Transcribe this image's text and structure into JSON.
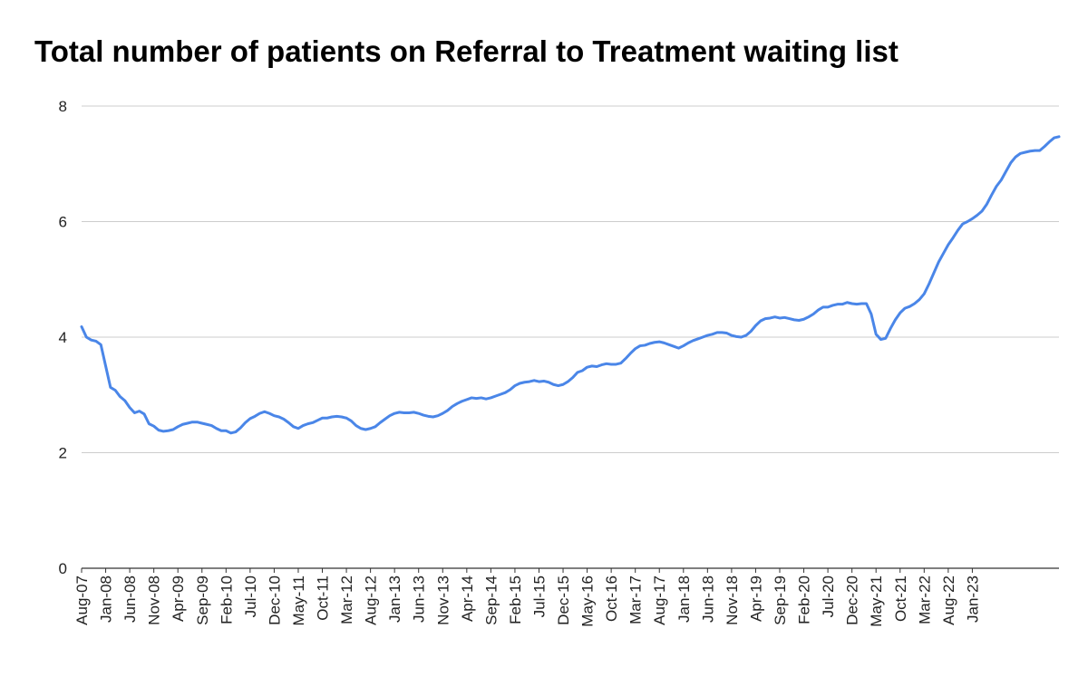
{
  "chart_data": {
    "type": "line",
    "title": "Total number of patients on Referral to Treatment waiting list",
    "xlabel": "",
    "ylabel": "",
    "ylim": [
      0,
      8
    ],
    "yticks": [
      0,
      2,
      4,
      6,
      8
    ],
    "grid": true,
    "line_color": "#4a86e8",
    "grid_color": "#cccccc",
    "x_tick_labels": [
      "Aug-07",
      "Jan-08",
      "Jun-08",
      "Nov-08",
      "Apr-09",
      "Sep-09",
      "Feb-10",
      "Jul-10",
      "Dec-10",
      "May-11",
      "Oct-11",
      "Mar-12",
      "Aug-12",
      "Jan-13",
      "Jun-13",
      "Nov-13",
      "Apr-14",
      "Sep-14",
      "Feb-15",
      "Jul-15",
      "Dec-15",
      "May-16",
      "Oct-16",
      "Mar-17",
      "Aug-17",
      "Jan-18",
      "Jun-18",
      "Nov-18",
      "Apr-19",
      "Sep-19",
      "Feb-20",
      "Jul-20",
      "Dec-20",
      "May-21",
      "Oct-21",
      "Mar-22",
      "Aug-22",
      "Jan-23"
    ],
    "series": [
      {
        "values": [
          4.18,
          4.0,
          3.95,
          3.93,
          3.87,
          3.5,
          3.13,
          3.08,
          2.97,
          2.9,
          2.78,
          2.69,
          2.72,
          2.67,
          2.5,
          2.46,
          2.39,
          2.37,
          2.38,
          2.4,
          2.45,
          2.49,
          2.51,
          2.53,
          2.53,
          2.51,
          2.49,
          2.47,
          2.42,
          2.38,
          2.38,
          2.34,
          2.36,
          2.43,
          2.52,
          2.59,
          2.63,
          2.68,
          2.71,
          2.68,
          2.64,
          2.62,
          2.58,
          2.52,
          2.45,
          2.42,
          2.47,
          2.5,
          2.52,
          2.56,
          2.6,
          2.6,
          2.62,
          2.63,
          2.62,
          2.6,
          2.55,
          2.47,
          2.42,
          2.4,
          2.42,
          2.45,
          2.52,
          2.58,
          2.64,
          2.68,
          2.7,
          2.69,
          2.69,
          2.7,
          2.68,
          2.65,
          2.63,
          2.62,
          2.64,
          2.68,
          2.73,
          2.8,
          2.85,
          2.89,
          2.92,
          2.95,
          2.94,
          2.95,
          2.93,
          2.95,
          2.98,
          3.01,
          3.04,
          3.09,
          3.16,
          3.2,
          3.22,
          3.23,
          3.25,
          3.23,
          3.24,
          3.22,
          3.18,
          3.16,
          3.18,
          3.23,
          3.3,
          3.39,
          3.42,
          3.48,
          3.5,
          3.49,
          3.52,
          3.54,
          3.53,
          3.53,
          3.55,
          3.63,
          3.72,
          3.8,
          3.85,
          3.86,
          3.89,
          3.91,
          3.92,
          3.9,
          3.87,
          3.84,
          3.81,
          3.85,
          3.9,
          3.94,
          3.97,
          4.0,
          4.03,
          4.05,
          4.08,
          4.08,
          4.07,
          4.03,
          4.01,
          4.0,
          4.03,
          4.1,
          4.2,
          4.28,
          4.32,
          4.33,
          4.35,
          4.33,
          4.34,
          4.32,
          4.3,
          4.29,
          4.31,
          4.35,
          4.4,
          4.47,
          4.52,
          4.52,
          4.55,
          4.57,
          4.57,
          4.6,
          4.58,
          4.57,
          4.58,
          4.58,
          4.4,
          4.05,
          3.96,
          3.98,
          4.15,
          4.3,
          4.42,
          4.5,
          4.53,
          4.58,
          4.65,
          4.75,
          4.92,
          5.11,
          5.3,
          5.45,
          5.6,
          5.72,
          5.85,
          5.96,
          6.0,
          6.05,
          6.11,
          6.18,
          6.3,
          6.46,
          6.61,
          6.72,
          6.87,
          7.02,
          7.12,
          7.18,
          7.2,
          7.22,
          7.23,
          7.23,
          7.3,
          7.38,
          7.45,
          7.47
        ]
      }
    ]
  }
}
